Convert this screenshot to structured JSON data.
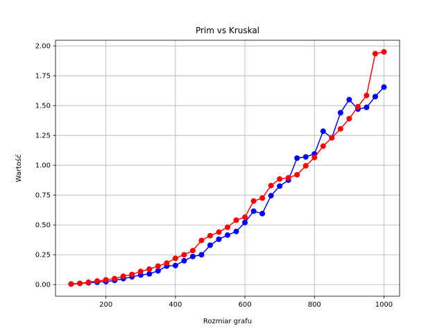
{
  "chart_data": {
    "type": "line",
    "title": "Prim vs Kruskal",
    "xlabel": "Rozmiar grafu",
    "ylabel": "Wartość",
    "xlim": [
      55,
      1045
    ],
    "ylim": [
      -0.0975,
      2.0475
    ],
    "xticks": [
      200,
      400,
      600,
      800,
      1000
    ],
    "yticks": [
      0.0,
      0.25,
      0.5,
      0.75,
      1.0,
      1.25,
      1.5,
      1.75,
      2.0
    ],
    "xtick_labels": [
      "200",
      "400",
      "600",
      "800",
      "1000"
    ],
    "ytick_labels": [
      "0.00",
      "0.25",
      "0.50",
      "0.75",
      "1.00",
      "1.25",
      "1.50",
      "1.75",
      "2.00"
    ],
    "grid": true,
    "x": [
      100,
      125,
      150,
      175,
      200,
      225,
      250,
      275,
      300,
      325,
      350,
      375,
      400,
      425,
      450,
      475,
      500,
      525,
      550,
      575,
      600,
      625,
      650,
      675,
      700,
      725,
      750,
      775,
      800,
      825,
      850,
      875,
      900,
      925,
      950,
      975,
      1000
    ],
    "series": [
      {
        "color": "#0000ff",
        "values": [
          0.005,
          0.01,
          0.015,
          0.02,
          0.025,
          0.035,
          0.05,
          0.065,
          0.08,
          0.09,
          0.115,
          0.155,
          0.16,
          0.2,
          0.235,
          0.25,
          0.33,
          0.38,
          0.415,
          0.445,
          0.52,
          0.615,
          0.595,
          0.745,
          0.825,
          0.875,
          1.06,
          1.07,
          1.095,
          1.285,
          1.23,
          1.44,
          1.55,
          1.47,
          1.485,
          1.575,
          1.655
        ]
      },
      {
        "color": "#ff0000",
        "values": [
          0.005,
          0.01,
          0.02,
          0.03,
          0.04,
          0.05,
          0.07,
          0.085,
          0.11,
          0.13,
          0.155,
          0.18,
          0.22,
          0.25,
          0.285,
          0.37,
          0.41,
          0.44,
          0.48,
          0.54,
          0.565,
          0.7,
          0.725,
          0.83,
          0.885,
          0.895,
          0.92,
          0.995,
          1.065,
          1.16,
          1.23,
          1.305,
          1.39,
          1.49,
          1.585,
          1.935,
          1.95
        ]
      }
    ]
  }
}
